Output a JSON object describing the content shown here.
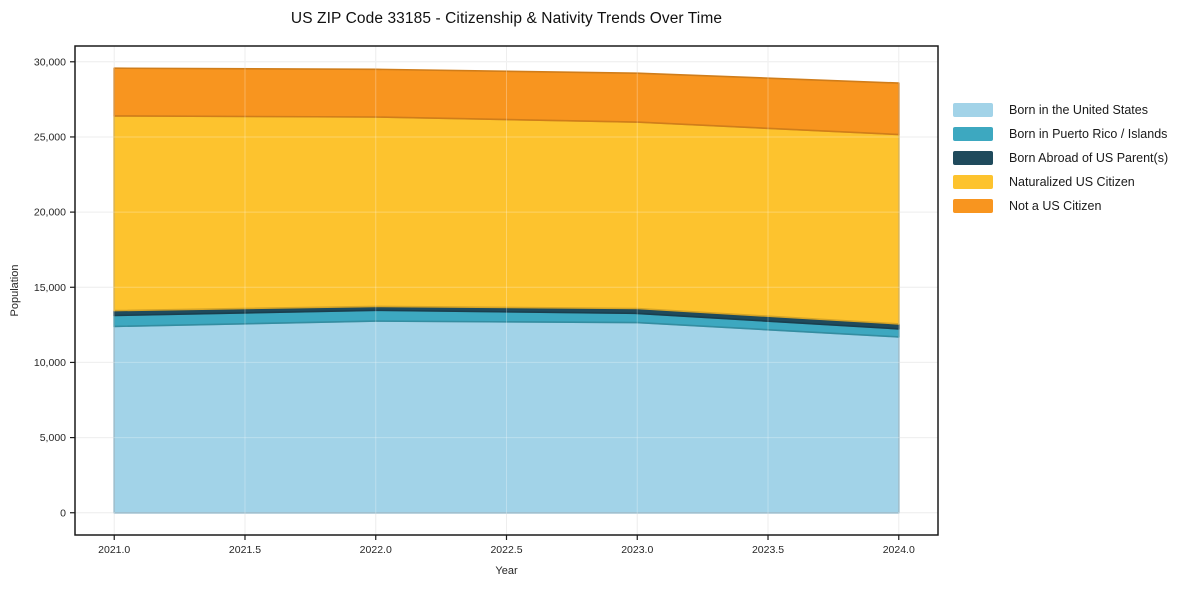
{
  "title": "US ZIP Code 33185 - Citizenship & Nativity Trends Over Time",
  "chart_data": {
    "type": "area",
    "stacked": true,
    "title": "US ZIP Code 33185 - Citizenship & Nativity Trends Over Time",
    "xlabel": "Year",
    "ylabel": "Population",
    "x": [
      2021,
      2022,
      2023,
      2024
    ],
    "series": [
      {
        "name": "Born in the United States",
        "color": "#a2d3e8",
        "values": [
          12400,
          12750,
          12650,
          11700
        ]
      },
      {
        "name": "Born in Puerto Rico / Islands",
        "color": "#3da8c0",
        "values": [
          720,
          720,
          610,
          530
        ]
      },
      {
        "name": "Born Abroad of US Parent(s)",
        "color": "#1f4a5c",
        "values": [
          330,
          260,
          330,
          330
        ]
      },
      {
        "name": "Naturalized US Citizen",
        "color": "#fdc32e",
        "values": [
          12950,
          12600,
          12400,
          12600
        ]
      },
      {
        "name": "Not a US Citizen",
        "color": "#f8951f",
        "values": [
          3170,
          3170,
          3250,
          3420
        ]
      }
    ],
    "xlim": [
      2020.85,
      2024.15
    ],
    "ylim": [
      -1480,
      31050
    ],
    "x_ticks": [
      {
        "v": 2021.0,
        "label": "2021.0"
      },
      {
        "v": 2021.5,
        "label": "2021.5"
      },
      {
        "v": 2022.0,
        "label": "2022.0"
      },
      {
        "v": 2022.5,
        "label": "2022.5"
      },
      {
        "v": 2023.0,
        "label": "2023.0"
      },
      {
        "v": 2023.5,
        "label": "2023.5"
      },
      {
        "v": 2024.0,
        "label": "2024.0"
      }
    ],
    "y_ticks": [
      {
        "v": 0,
        "label": "0"
      },
      {
        "v": 5000,
        "label": "5,000"
      },
      {
        "v": 10000,
        "label": "10,000"
      },
      {
        "v": 15000,
        "label": "15,000"
      },
      {
        "v": 20000,
        "label": "20,000"
      },
      {
        "v": 25000,
        "label": "25,000"
      },
      {
        "v": 30000,
        "label": "30,000"
      }
    ],
    "grid": true,
    "legend_position": "right"
  },
  "style": {
    "spine_color": "#1a1a1a",
    "grid_color": "#e8e8e8",
    "background": "#ffffff"
  }
}
